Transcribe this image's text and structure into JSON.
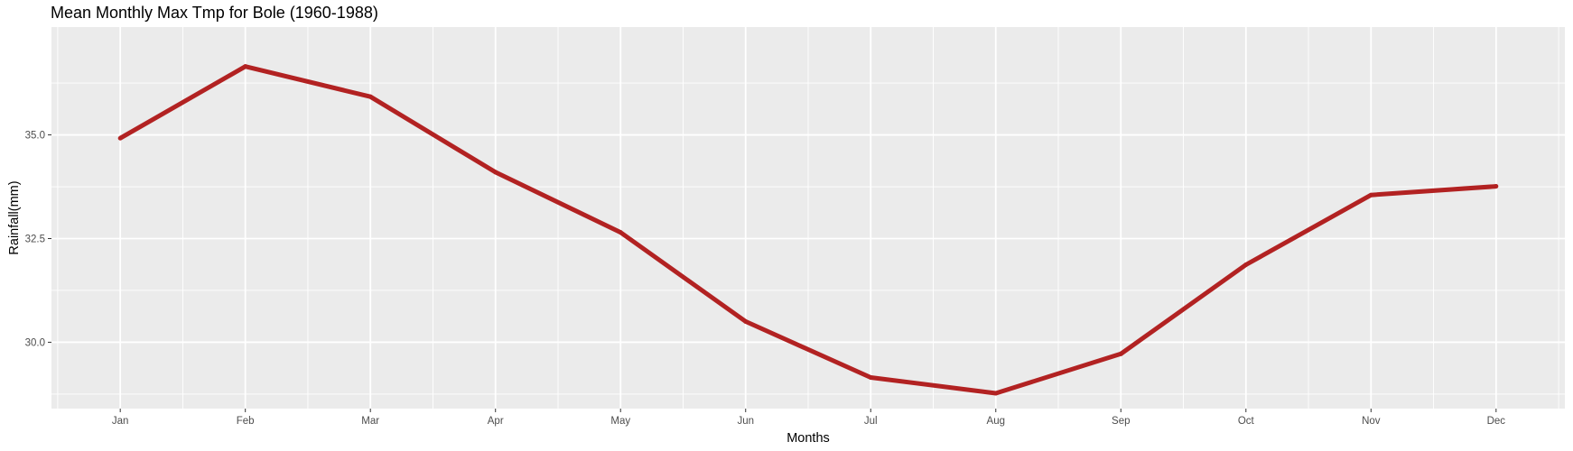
{
  "chart_data": {
    "type": "line",
    "title": "Mean Monthly Max Tmp for Bole (1960-1988)",
    "xlabel": "Months",
    "ylabel": "Rainfall(mm)",
    "categories": [
      "Jan",
      "Feb",
      "Mar",
      "Apr",
      "May",
      "Jun",
      "Jul",
      "Aug",
      "Sep",
      "Oct",
      "Nov",
      "Dec"
    ],
    "series": [
      {
        "values": [
          34.92,
          36.65,
          35.92,
          34.1,
          32.65,
          30.5,
          29.15,
          28.77,
          29.72,
          31.87,
          33.55,
          33.76
        ]
      }
    ],
    "ylim": [
      28.4,
      37.6
    ],
    "yticks": [
      30.0,
      32.5,
      35.0
    ],
    "ytick_labels": [
      "30.0",
      "32.5",
      "35.0"
    ],
    "grid": true,
    "colors": {
      "line": "#b22222",
      "panel": "#ebebeb",
      "grid": "#ffffff"
    }
  }
}
